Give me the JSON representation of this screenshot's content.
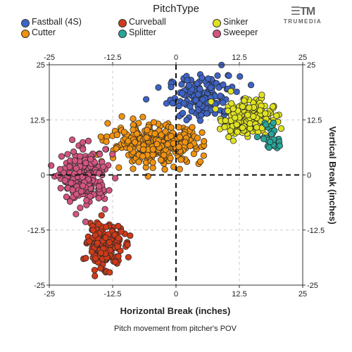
{
  "chart_data": {
    "type": "scatter",
    "title": "",
    "legend_title": "PitchType",
    "legend_placement": "top",
    "xlabel": "Horizontal Break (inches)",
    "ylabel": "Vertical Break (inches)",
    "caption": "Pitch movement from pitcher's POV",
    "xlim": [
      -25,
      25
    ],
    "ylim": [
      -25,
      25
    ],
    "x_ticks": [
      -25,
      -12.5,
      0,
      12.5,
      25
    ],
    "y_ticks": [
      -25,
      -12.5,
      0,
      12.5,
      25
    ],
    "x_tick_labels": [
      "-25",
      "-12.5",
      "0",
      "12.5",
      "25"
    ],
    "y_tick_labels": [
      "-25",
      "-12.5",
      "0",
      "12.5",
      "25"
    ],
    "grid": true,
    "series": [
      {
        "name": "Fastball (4S)",
        "color": "#3e63c5",
        "center": [
          5.5,
          17.5
        ],
        "spread": [
          3.5,
          2.5
        ],
        "count": 170
      },
      {
        "name": "Sinker",
        "color": "#dfe21f",
        "center": [
          14,
          13
        ],
        "spread": [
          2.6,
          2.2
        ],
        "count": 180
      },
      {
        "name": "Splitter",
        "color": "#26a69a",
        "center": [
          19,
          8.5
        ],
        "spread": [
          1.2,
          2.0
        ],
        "count": 30
      },
      {
        "name": "Curveball",
        "color": "#cf3a18",
        "center": [
          -14,
          -16
        ],
        "spread": [
          1.7,
          2.3
        ],
        "count": 200
      },
      {
        "name": "Cutter",
        "color": "#f0920f",
        "center": [
          -4,
          7
        ],
        "spread": [
          4.5,
          2.2
        ],
        "count": 320
      },
      {
        "name": "Sweeper",
        "color": "#d35480",
        "center": [
          -18,
          -0.5
        ],
        "spread": [
          2.2,
          3.0
        ],
        "count": 240
      }
    ]
  },
  "brand": {
    "mark": "☰TM",
    "name": "TRUMEDIA"
  }
}
